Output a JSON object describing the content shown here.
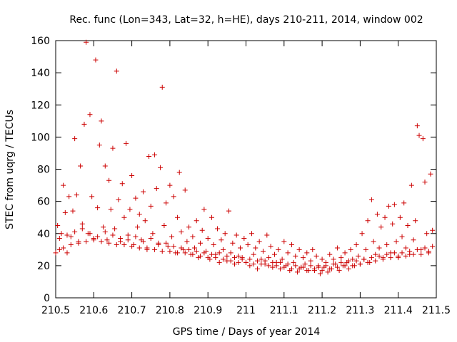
{
  "chart_data": {
    "type": "scatter",
    "title": "Rec. func (Lon=343, Lat=32, h=HE), days 210-211, 2014, window 002",
    "xlabel": "GPS time / Days of year 2014",
    "ylabel": "STEC from uqrg / TECUs",
    "xlim": [
      210.5,
      211.5
    ],
    "ylim": [
      0,
      160
    ],
    "xticks": [
      210.5,
      210.6,
      210.7,
      210.8,
      210.9,
      211.0,
      211.1,
      211.2,
      211.3,
      211.4,
      211.5
    ],
    "xtick_labels": [
      "210.5",
      "210.6",
      "210.7",
      "210.8",
      "210.9",
      "211",
      "211.1",
      "211.2",
      "211.3",
      "211.4",
      "211.5"
    ],
    "yticks": [
      0,
      20,
      40,
      60,
      80,
      100,
      120,
      140,
      160
    ],
    "ytick_labels": [
      "0",
      "20",
      "40",
      "60",
      "80",
      "100",
      "120",
      "140",
      "160"
    ],
    "grid": false,
    "legend": "none",
    "marker": "plus",
    "color": "#cc0000",
    "series": [
      {
        "values": [
          [
            210.505,
            45
          ],
          [
            210.51,
            30
          ],
          [
            210.515,
            40
          ],
          [
            210.52,
            70
          ],
          [
            210.525,
            53
          ],
          [
            210.53,
            28
          ],
          [
            210.535,
            63
          ],
          [
            210.54,
            38
          ],
          [
            210.545,
            54
          ],
          [
            210.55,
            99
          ],
          [
            210.555,
            64
          ],
          [
            210.56,
            35
          ],
          [
            210.565,
            82
          ],
          [
            210.57,
            46
          ],
          [
            210.575,
            108
          ],
          [
            210.58,
            159
          ],
          [
            210.585,
            40
          ],
          [
            210.59,
            114
          ],
          [
            210.595,
            63
          ],
          [
            210.6,
            37
          ],
          [
            210.605,
            148
          ],
          [
            210.61,
            56
          ],
          [
            210.615,
            95
          ],
          [
            210.62,
            110
          ],
          [
            210.625,
            44
          ],
          [
            210.63,
            82
          ],
          [
            210.635,
            36
          ],
          [
            210.64,
            73
          ],
          [
            210.645,
            55
          ],
          [
            210.65,
            93
          ],
          [
            210.655,
            43
          ],
          [
            210.66,
            141
          ],
          [
            210.665,
            61
          ],
          [
            210.67,
            35
          ],
          [
            210.675,
            71
          ],
          [
            210.68,
            50
          ],
          [
            210.685,
            96
          ],
          [
            210.69,
            39
          ],
          [
            210.695,
            55
          ],
          [
            210.7,
            76
          ],
          [
            210.705,
            33
          ],
          [
            210.71,
            62
          ],
          [
            210.715,
            44
          ],
          [
            210.72,
            52
          ],
          [
            210.725,
            36
          ],
          [
            210.73,
            66
          ],
          [
            210.735,
            48
          ],
          [
            210.74,
            31
          ],
          [
            210.745,
            88
          ],
          [
            210.75,
            57
          ],
          [
            210.755,
            40
          ],
          [
            210.76,
            89
          ],
          [
            210.765,
            68
          ],
          [
            210.77,
            34
          ],
          [
            210.775,
            81
          ],
          [
            210.78,
            131
          ],
          [
            210.785,
            45
          ],
          [
            210.79,
            59
          ],
          [
            210.795,
            32
          ],
          [
            210.8,
            70
          ],
          [
            210.805,
            38
          ],
          [
            210.81,
            63
          ],
          [
            210.815,
            28
          ],
          [
            210.82,
            50
          ],
          [
            210.825,
            78
          ],
          [
            210.83,
            41
          ],
          [
            210.835,
            30
          ],
          [
            210.84,
            67
          ],
          [
            210.845,
            35
          ],
          [
            210.85,
            44
          ],
          [
            210.855,
            27
          ],
          [
            210.86,
            38
          ],
          [
            210.865,
            31
          ],
          [
            210.87,
            48
          ],
          [
            210.875,
            25
          ],
          [
            210.88,
            34
          ],
          [
            210.885,
            42
          ],
          [
            210.89,
            55
          ],
          [
            210.895,
            29
          ],
          [
            210.9,
            37
          ],
          [
            210.905,
            24
          ],
          [
            210.91,
            50
          ],
          [
            210.915,
            33
          ],
          [
            210.92,
            27
          ],
          [
            210.925,
            43
          ],
          [
            210.93,
            22
          ],
          [
            210.935,
            36
          ],
          [
            210.94,
            30
          ],
          [
            210.945,
            40
          ],
          [
            210.95,
            23
          ],
          [
            210.955,
            54
          ],
          [
            210.96,
            28
          ],
          [
            210.965,
            34
          ],
          [
            210.97,
            21
          ],
          [
            210.975,
            39
          ],
          [
            210.98,
            26
          ],
          [
            210.985,
            31
          ],
          [
            210.99,
            24
          ],
          [
            210.995,
            37
          ],
          [
            211.0,
            22
          ],
          [
            211.005,
            33
          ],
          [
            211.01,
            20
          ],
          [
            211.015,
            40
          ],
          [
            211.02,
            27
          ],
          [
            211.025,
            31
          ],
          [
            211.03,
            18
          ],
          [
            211.035,
            35
          ],
          [
            211.04,
            24
          ],
          [
            211.045,
            29
          ],
          [
            211.05,
            21
          ],
          [
            211.055,
            39
          ],
          [
            211.06,
            25
          ],
          [
            211.065,
            32
          ],
          [
            211.07,
            19
          ],
          [
            211.075,
            27
          ],
          [
            211.08,
            22
          ],
          [
            211.085,
            30
          ],
          [
            211.09,
            18
          ],
          [
            211.095,
            24
          ],
          [
            211.1,
            35
          ],
          [
            211.105,
            20
          ],
          [
            211.11,
            28
          ],
          [
            211.115,
            17
          ],
          [
            211.12,
            33
          ],
          [
            211.125,
            22
          ],
          [
            211.13,
            26
          ],
          [
            211.135,
            16
          ],
          [
            211.14,
            30
          ],
          [
            211.145,
            19
          ],
          [
            211.15,
            25
          ],
          [
            211.155,
            21
          ],
          [
            211.16,
            28
          ],
          [
            211.165,
            17
          ],
          [
            211.17,
            23
          ],
          [
            211.175,
            30
          ],
          [
            211.18,
            18
          ],
          [
            211.185,
            26
          ],
          [
            211.19,
            20
          ],
          [
            211.195,
            15
          ],
          [
            211.2,
            24
          ],
          [
            211.205,
            19
          ],
          [
            211.21,
            22
          ],
          [
            211.215,
            16
          ],
          [
            211.22,
            27
          ],
          [
            211.225,
            18
          ],
          [
            211.23,
            24
          ],
          [
            211.235,
            21
          ],
          [
            211.24,
            31
          ],
          [
            211.245,
            17
          ],
          [
            211.25,
            25
          ],
          [
            211.255,
            20
          ],
          [
            211.26,
            28
          ],
          [
            211.265,
            22
          ],
          [
            211.27,
            18
          ],
          [
            211.275,
            30
          ],
          [
            211.28,
            24
          ],
          [
            211.285,
            20
          ],
          [
            211.29,
            33
          ],
          [
            211.295,
            26
          ],
          [
            211.3,
            21
          ],
          [
            211.305,
            40
          ],
          [
            211.31,
            24
          ],
          [
            211.315,
            30
          ],
          [
            211.32,
            48
          ],
          [
            211.325,
            22
          ],
          [
            211.33,
            61
          ],
          [
            211.335,
            35
          ],
          [
            211.34,
            27
          ],
          [
            211.345,
            52
          ],
          [
            211.35,
            31
          ],
          [
            211.355,
            44
          ],
          [
            211.36,
            25
          ],
          [
            211.365,
            50
          ],
          [
            211.37,
            33
          ],
          [
            211.375,
            57
          ],
          [
            211.38,
            28
          ],
          [
            211.385,
            46
          ],
          [
            211.39,
            58
          ],
          [
            211.395,
            35
          ],
          [
            211.4,
            26
          ],
          [
            211.405,
            50
          ],
          [
            211.41,
            38
          ],
          [
            211.415,
            59
          ],
          [
            211.42,
            31
          ],
          [
            211.425,
            45
          ],
          [
            211.43,
            27
          ],
          [
            211.435,
            70
          ],
          [
            211.44,
            36
          ],
          [
            211.445,
            48
          ],
          [
            211.45,
            107
          ],
          [
            211.455,
            101
          ],
          [
            211.46,
            30
          ],
          [
            211.465,
            99
          ],
          [
            211.47,
            72
          ],
          [
            211.475,
            40
          ],
          [
            211.48,
            29
          ],
          [
            211.485,
            77
          ],
          [
            211.49,
            42
          ]
        ]
      },
      {
        "values": [
          [
            210.5,
            28
          ],
          [
            210.52,
            31
          ],
          [
            210.54,
            33
          ],
          [
            210.56,
            34
          ],
          [
            210.58,
            35
          ],
          [
            210.6,
            36
          ],
          [
            210.62,
            35
          ],
          [
            210.64,
            34
          ],
          [
            210.66,
            33
          ],
          [
            210.68,
            33
          ],
          [
            210.7,
            32
          ],
          [
            210.72,
            31
          ],
          [
            210.74,
            30
          ],
          [
            210.76,
            30
          ],
          [
            210.78,
            29
          ],
          [
            210.8,
            29
          ],
          [
            210.82,
            28
          ],
          [
            210.84,
            28
          ],
          [
            210.86,
            27
          ],
          [
            210.88,
            26
          ],
          [
            210.9,
            25
          ],
          [
            210.92,
            25
          ],
          [
            210.94,
            24
          ],
          [
            210.96,
            23
          ],
          [
            210.98,
            22
          ],
          [
            211.0,
            22
          ],
          [
            211.02,
            21
          ],
          [
            211.04,
            21
          ],
          [
            211.06,
            20
          ],
          [
            211.08,
            20
          ],
          [
            211.1,
            19
          ],
          [
            211.12,
            18
          ],
          [
            211.14,
            18
          ],
          [
            211.16,
            17
          ],
          [
            211.18,
            17
          ],
          [
            211.2,
            17
          ],
          [
            211.22,
            18
          ],
          [
            211.24,
            19
          ],
          [
            211.26,
            20
          ],
          [
            211.28,
            20
          ],
          [
            211.3,
            21
          ],
          [
            211.32,
            22
          ],
          [
            211.34,
            23
          ],
          [
            211.36,
            24
          ],
          [
            211.38,
            25
          ],
          [
            211.4,
            25
          ],
          [
            211.42,
            26
          ],
          [
            211.44,
            27
          ],
          [
            211.46,
            27
          ],
          [
            211.48,
            28
          ],
          [
            210.51,
            37
          ],
          [
            210.53,
            39
          ],
          [
            210.55,
            41
          ],
          [
            210.57,
            43
          ],
          [
            210.59,
            40
          ],
          [
            210.61,
            38
          ],
          [
            210.63,
            41
          ],
          [
            210.65,
            39
          ],
          [
            210.67,
            37
          ],
          [
            210.69,
            36
          ],
          [
            210.71,
            38
          ],
          [
            210.73,
            35
          ],
          [
            210.75,
            37
          ],
          [
            210.77,
            33
          ],
          [
            210.79,
            34
          ],
          [
            210.81,
            32
          ],
          [
            210.83,
            31
          ],
          [
            210.85,
            30
          ],
          [
            210.87,
            29
          ],
          [
            210.89,
            28
          ],
          [
            210.91,
            27
          ],
          [
            210.93,
            28
          ],
          [
            210.95,
            26
          ],
          [
            210.97,
            25
          ],
          [
            210.99,
            25
          ],
          [
            211.01,
            24
          ],
          [
            211.03,
            23
          ],
          [
            211.05,
            23
          ],
          [
            211.07,
            22
          ],
          [
            211.09,
            22
          ],
          [
            211.11,
            21
          ],
          [
            211.13,
            20
          ],
          [
            211.15,
            19
          ],
          [
            211.17,
            20
          ],
          [
            211.19,
            19
          ],
          [
            211.21,
            20
          ],
          [
            211.23,
            21
          ],
          [
            211.25,
            22
          ],
          [
            211.27,
            23
          ],
          [
            211.29,
            23
          ],
          [
            211.31,
            24
          ],
          [
            211.33,
            25
          ],
          [
            211.35,
            26
          ],
          [
            211.37,
            27
          ],
          [
            211.39,
            28
          ],
          [
            211.41,
            28
          ],
          [
            211.43,
            29
          ],
          [
            211.45,
            30
          ],
          [
            211.47,
            31
          ],
          [
            211.49,
            32
          ]
        ]
      }
    ]
  }
}
